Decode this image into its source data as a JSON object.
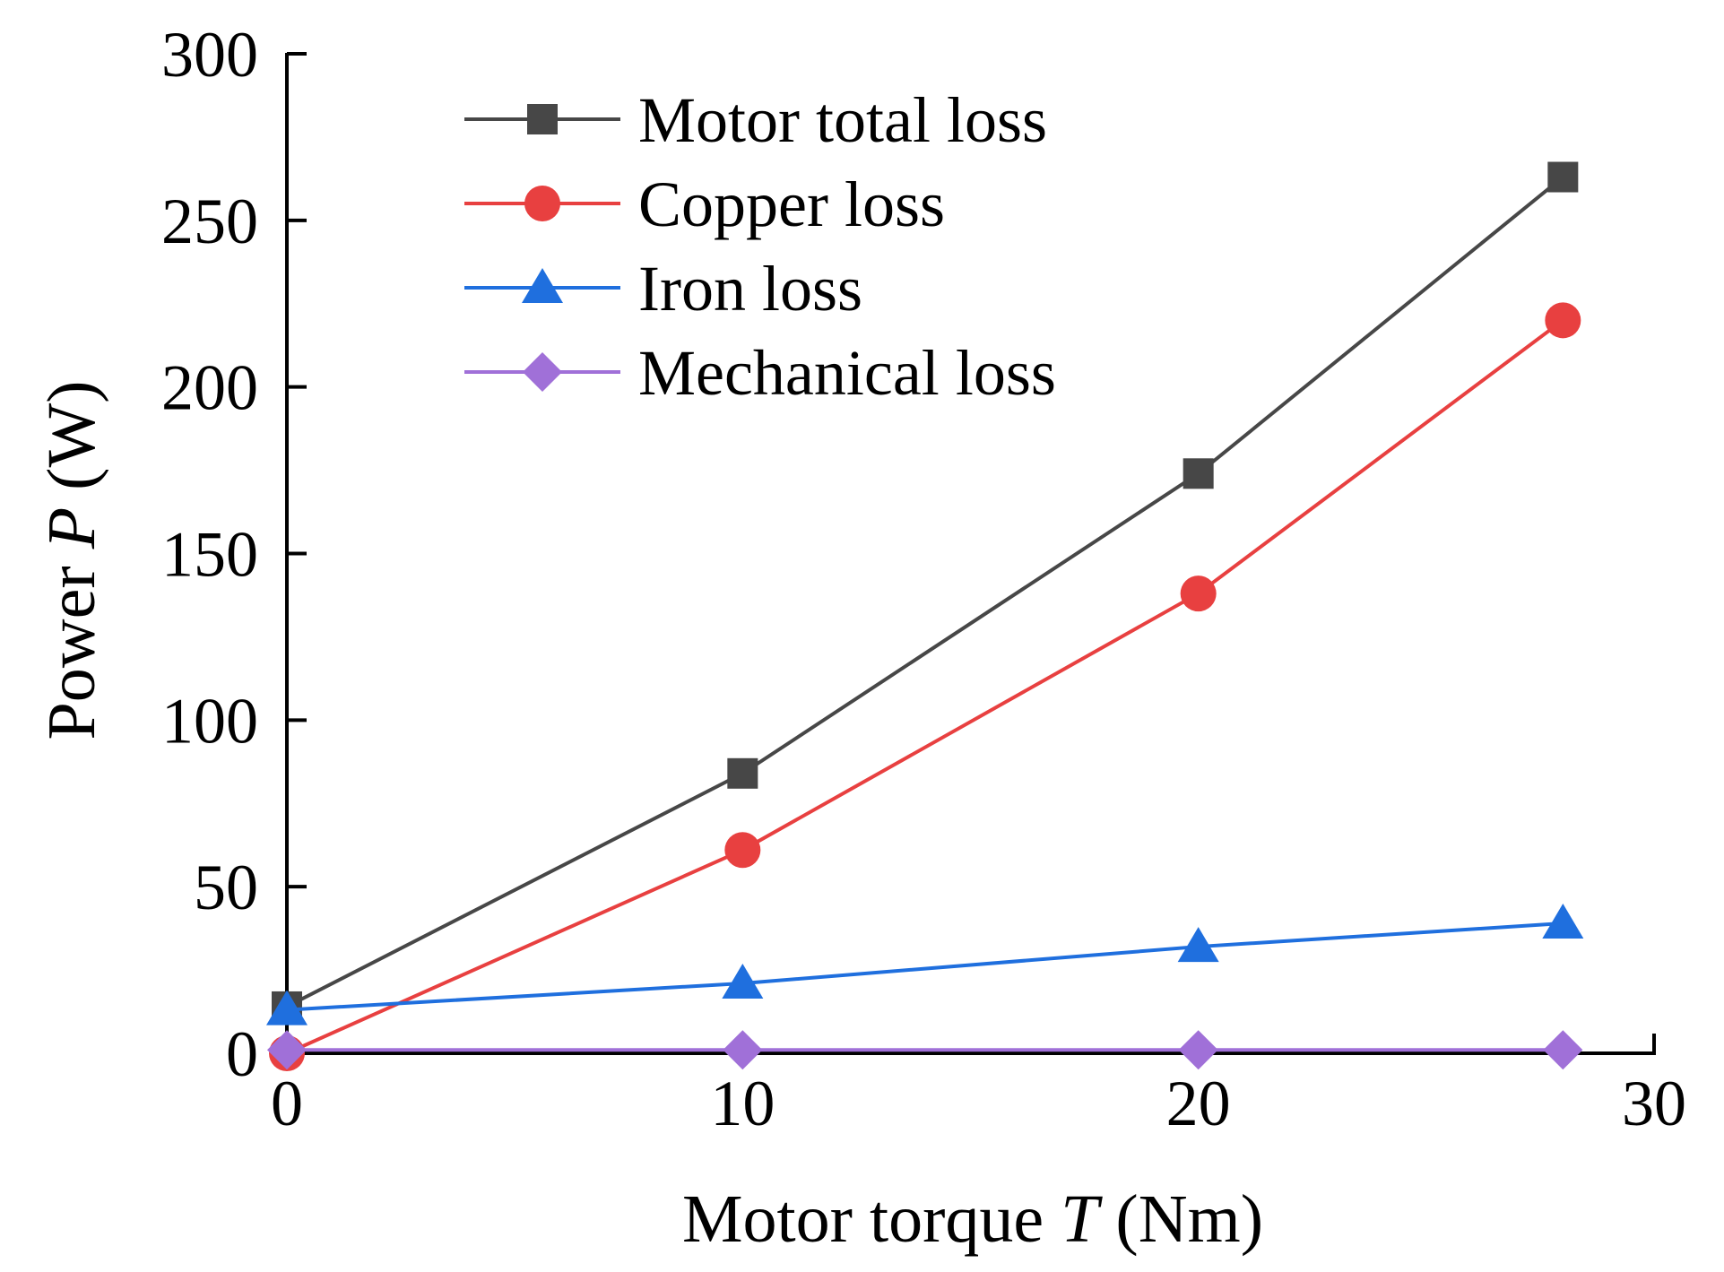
{
  "chart_data": {
    "type": "line",
    "title": "",
    "xlabel": {
      "prefix": "Motor torque ",
      "var": "T",
      "suffix": " (Nm)"
    },
    "ylabel": {
      "prefix": "Power ",
      "var": "P",
      "suffix": " (W)"
    },
    "xlim": [
      0,
      30
    ],
    "ylim": [
      0,
      300
    ],
    "xticks": [
      0,
      10,
      20,
      30
    ],
    "yticks": [
      0,
      50,
      100,
      150,
      200,
      250,
      300
    ],
    "grid": false,
    "legend_position": "top-left",
    "x": [
      0,
      10,
      20,
      28
    ],
    "series": [
      {
        "name": "Motor total loss",
        "color": "#474747",
        "marker": "square",
        "values": [
          14,
          84,
          174,
          263
        ]
      },
      {
        "name": "Copper loss",
        "color": "#e84040",
        "marker": "circle",
        "values": [
          0,
          61,
          138,
          220
        ]
      },
      {
        "name": "Iron loss",
        "color": "#1f6fde",
        "marker": "triangle",
        "values": [
          13,
          21,
          32,
          39
        ]
      },
      {
        "name": "Mechanical loss",
        "color": "#a070d8",
        "marker": "diamond",
        "values": [
          1,
          1,
          1,
          1
        ]
      }
    ]
  }
}
